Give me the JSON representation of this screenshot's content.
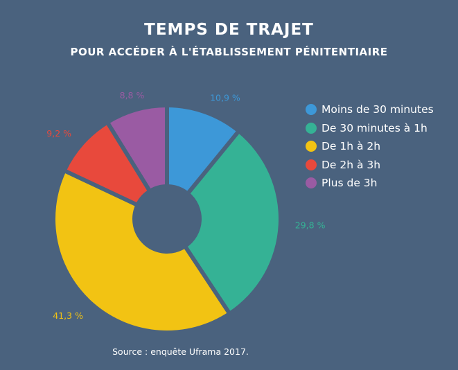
{
  "chart_data": {
    "type": "pie",
    "donut": true,
    "title": "TEMPS DE TRAJET",
    "subtitle": "POUR ACCÉDER À L'ÉTABLISSEMENT PÉNITENTIAIRE",
    "categories": [
      "Moins de 30 minutes",
      "De 30 minutes à 1h",
      "De 1h à 2h",
      "De 2h à 3h",
      "Plus de 3h"
    ],
    "values": [
      10.9,
      29.8,
      41.3,
      9.2,
      8.8
    ],
    "value_labels": [
      "10,9 %",
      "29,8 %",
      "41,3 %",
      "9,2 %",
      "8,8 %"
    ],
    "colors": [
      "#3d98d8",
      "#35b295",
      "#f2c313",
      "#e8493c",
      "#9a5ba3"
    ],
    "legend_position": "right",
    "source": "Source : enquête Uframa 2017."
  },
  "background_color": "#4a627e"
}
